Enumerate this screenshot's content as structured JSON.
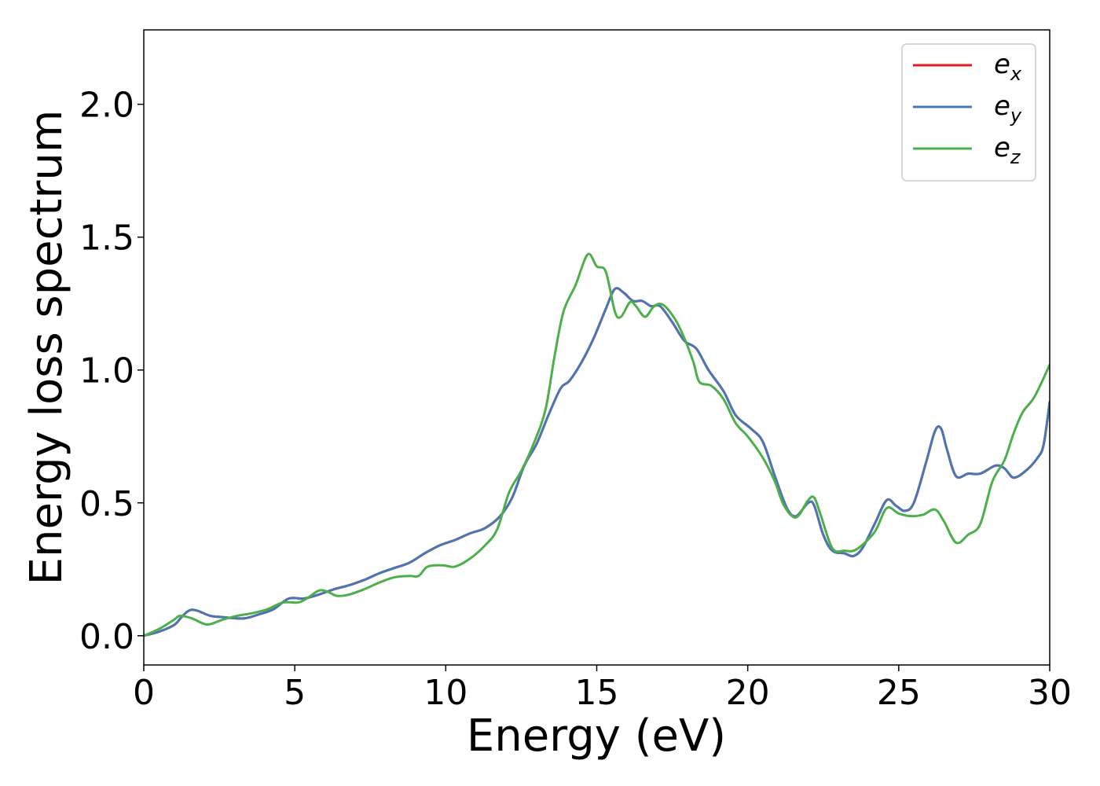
{
  "chart_data": {
    "type": "line",
    "title": "",
    "xlabel": "Energy (eV)",
    "ylabel": "Energy loss spectrum",
    "xlim": [
      0,
      30
    ],
    "ylim": [
      -0.11,
      2.28
    ],
    "xticks": [
      0,
      5,
      10,
      15,
      20,
      25,
      30
    ],
    "xtick_labels": [
      "0",
      "5",
      "10",
      "15",
      "20",
      "25",
      "30"
    ],
    "yticks": [
      0.0,
      0.5,
      1.0,
      1.5,
      2.0
    ],
    "ytick_labels": [
      "0.0",
      "0.5",
      "1.0",
      "1.5",
      "2.0"
    ],
    "grid": false,
    "legend_position": "top-right",
    "series": [
      {
        "name": "e_x",
        "legend_base": "e",
        "legend_sub": "x",
        "color": "#e41a1c",
        "points": [
          [
            0,
            0
          ],
          [
            0.5,
            0.015
          ],
          [
            1.0,
            0.04
          ],
          [
            1.25,
            0.07
          ],
          [
            1.5,
            0.095
          ],
          [
            1.75,
            0.095
          ],
          [
            2.2,
            0.075
          ],
          [
            2.6,
            0.07
          ],
          [
            3.3,
            0.065
          ],
          [
            3.8,
            0.08
          ],
          [
            4.3,
            0.1
          ],
          [
            4.8,
            0.14
          ],
          [
            5.3,
            0.14
          ],
          [
            5.8,
            0.155
          ],
          [
            6.3,
            0.175
          ],
          [
            6.8,
            0.19
          ],
          [
            7.3,
            0.21
          ],
          [
            7.8,
            0.235
          ],
          [
            8.3,
            0.255
          ],
          [
            8.8,
            0.275
          ],
          [
            9.3,
            0.31
          ],
          [
            9.8,
            0.34
          ],
          [
            10.3,
            0.36
          ],
          [
            10.8,
            0.385
          ],
          [
            11.3,
            0.405
          ],
          [
            11.8,
            0.45
          ],
          [
            12.2,
            0.52
          ],
          [
            12.6,
            0.64
          ],
          [
            13.0,
            0.72
          ],
          [
            13.4,
            0.83
          ],
          [
            13.8,
            0.93
          ],
          [
            14.1,
            0.96
          ],
          [
            14.5,
            1.03
          ],
          [
            14.9,
            1.12
          ],
          [
            15.3,
            1.23
          ],
          [
            15.6,
            1.305
          ],
          [
            15.9,
            1.29
          ],
          [
            16.2,
            1.26
          ],
          [
            16.5,
            1.26
          ],
          [
            16.8,
            1.24
          ],
          [
            17.1,
            1.24
          ],
          [
            17.5,
            1.18
          ],
          [
            17.9,
            1.11
          ],
          [
            18.3,
            1.08
          ],
          [
            18.7,
            1.0
          ],
          [
            19.2,
            0.92
          ],
          [
            19.6,
            0.83
          ],
          [
            20.1,
            0.78
          ],
          [
            20.5,
            0.73
          ],
          [
            20.9,
            0.6
          ],
          [
            21.3,
            0.48
          ],
          [
            21.6,
            0.45
          ],
          [
            22.0,
            0.5
          ],
          [
            22.2,
            0.49
          ],
          [
            22.5,
            0.38
          ],
          [
            22.8,
            0.32
          ],
          [
            23.2,
            0.31
          ],
          [
            23.5,
            0.3
          ],
          [
            23.8,
            0.33
          ],
          [
            24.2,
            0.42
          ],
          [
            24.6,
            0.51
          ],
          [
            24.9,
            0.49
          ],
          [
            25.2,
            0.47
          ],
          [
            25.5,
            0.5
          ],
          [
            25.9,
            0.65
          ],
          [
            26.2,
            0.77
          ],
          [
            26.4,
            0.78
          ],
          [
            26.6,
            0.7
          ],
          [
            26.9,
            0.6
          ],
          [
            27.3,
            0.61
          ],
          [
            27.7,
            0.61
          ],
          [
            28.2,
            0.64
          ],
          [
            28.5,
            0.63
          ],
          [
            28.8,
            0.595
          ],
          [
            29.2,
            0.62
          ],
          [
            29.6,
            0.67
          ],
          [
            29.8,
            0.72
          ],
          [
            30.0,
            0.88
          ]
        ]
      },
      {
        "name": "e_y",
        "legend_base": "e",
        "legend_sub": "y",
        "color": "#4a77b4",
        "points": [
          [
            0,
            0
          ],
          [
            0.5,
            0.015
          ],
          [
            1.0,
            0.04
          ],
          [
            1.25,
            0.07
          ],
          [
            1.5,
            0.095
          ],
          [
            1.75,
            0.095
          ],
          [
            2.2,
            0.075
          ],
          [
            2.6,
            0.07
          ],
          [
            3.3,
            0.065
          ],
          [
            3.8,
            0.08
          ],
          [
            4.3,
            0.1
          ],
          [
            4.8,
            0.14
          ],
          [
            5.3,
            0.14
          ],
          [
            5.8,
            0.155
          ],
          [
            6.3,
            0.175
          ],
          [
            6.8,
            0.19
          ],
          [
            7.3,
            0.21
          ],
          [
            7.8,
            0.235
          ],
          [
            8.3,
            0.255
          ],
          [
            8.8,
            0.275
          ],
          [
            9.3,
            0.31
          ],
          [
            9.8,
            0.34
          ],
          [
            10.3,
            0.36
          ],
          [
            10.8,
            0.385
          ],
          [
            11.3,
            0.405
          ],
          [
            11.8,
            0.45
          ],
          [
            12.2,
            0.52
          ],
          [
            12.6,
            0.64
          ],
          [
            13.0,
            0.72
          ],
          [
            13.4,
            0.83
          ],
          [
            13.8,
            0.93
          ],
          [
            14.1,
            0.96
          ],
          [
            14.5,
            1.03
          ],
          [
            14.9,
            1.12
          ],
          [
            15.3,
            1.23
          ],
          [
            15.6,
            1.305
          ],
          [
            15.9,
            1.29
          ],
          [
            16.2,
            1.26
          ],
          [
            16.5,
            1.26
          ],
          [
            16.8,
            1.24
          ],
          [
            17.1,
            1.24
          ],
          [
            17.5,
            1.18
          ],
          [
            17.9,
            1.11
          ],
          [
            18.3,
            1.08
          ],
          [
            18.7,
            1.0
          ],
          [
            19.2,
            0.92
          ],
          [
            19.6,
            0.83
          ],
          [
            20.1,
            0.78
          ],
          [
            20.5,
            0.73
          ],
          [
            20.9,
            0.6
          ],
          [
            21.3,
            0.48
          ],
          [
            21.6,
            0.45
          ],
          [
            22.0,
            0.5
          ],
          [
            22.2,
            0.49
          ],
          [
            22.5,
            0.38
          ],
          [
            22.8,
            0.32
          ],
          [
            23.2,
            0.31
          ],
          [
            23.5,
            0.3
          ],
          [
            23.8,
            0.33
          ],
          [
            24.2,
            0.42
          ],
          [
            24.6,
            0.51
          ],
          [
            24.9,
            0.49
          ],
          [
            25.2,
            0.47
          ],
          [
            25.5,
            0.5
          ],
          [
            25.9,
            0.65
          ],
          [
            26.2,
            0.77
          ],
          [
            26.4,
            0.78
          ],
          [
            26.6,
            0.7
          ],
          [
            26.9,
            0.6
          ],
          [
            27.3,
            0.61
          ],
          [
            27.7,
            0.61
          ],
          [
            28.2,
            0.64
          ],
          [
            28.5,
            0.63
          ],
          [
            28.8,
            0.595
          ],
          [
            29.2,
            0.62
          ],
          [
            29.6,
            0.67
          ],
          [
            29.8,
            0.72
          ],
          [
            30.0,
            0.88
          ]
        ]
      },
      {
        "name": "e_z",
        "legend_base": "e",
        "legend_sub": "z",
        "color": "#4daf4a",
        "points": [
          [
            0,
            0
          ],
          [
            0.5,
            0.025
          ],
          [
            1.0,
            0.06
          ],
          [
            1.2,
            0.075
          ],
          [
            1.6,
            0.065
          ],
          [
            2.1,
            0.042
          ],
          [
            2.6,
            0.06
          ],
          [
            3.1,
            0.075
          ],
          [
            3.6,
            0.085
          ],
          [
            4.1,
            0.1
          ],
          [
            4.6,
            0.125
          ],
          [
            5.1,
            0.125
          ],
          [
            5.4,
            0.14
          ],
          [
            5.8,
            0.17
          ],
          [
            6.1,
            0.165
          ],
          [
            6.4,
            0.15
          ],
          [
            6.8,
            0.155
          ],
          [
            7.3,
            0.175
          ],
          [
            7.8,
            0.2
          ],
          [
            8.3,
            0.22
          ],
          [
            8.8,
            0.225
          ],
          [
            9.1,
            0.225
          ],
          [
            9.4,
            0.26
          ],
          [
            9.9,
            0.265
          ],
          [
            10.3,
            0.26
          ],
          [
            10.8,
            0.29
          ],
          [
            11.3,
            0.34
          ],
          [
            11.7,
            0.4
          ],
          [
            12.1,
            0.54
          ],
          [
            12.5,
            0.62
          ],
          [
            12.9,
            0.72
          ],
          [
            13.3,
            0.85
          ],
          [
            13.6,
            1.05
          ],
          [
            13.9,
            1.22
          ],
          [
            14.3,
            1.32
          ],
          [
            14.7,
            1.435
          ],
          [
            15.0,
            1.39
          ],
          [
            15.3,
            1.37
          ],
          [
            15.6,
            1.22
          ],
          [
            15.8,
            1.2
          ],
          [
            16.1,
            1.255
          ],
          [
            16.3,
            1.24
          ],
          [
            16.6,
            1.2
          ],
          [
            16.9,
            1.24
          ],
          [
            17.2,
            1.245
          ],
          [
            17.6,
            1.19
          ],
          [
            17.9,
            1.12
          ],
          [
            18.2,
            1.03
          ],
          [
            18.4,
            0.955
          ],
          [
            18.8,
            0.94
          ],
          [
            19.2,
            0.89
          ],
          [
            19.6,
            0.8
          ],
          [
            20.0,
            0.75
          ],
          [
            20.5,
            0.67
          ],
          [
            20.9,
            0.58
          ],
          [
            21.2,
            0.49
          ],
          [
            21.6,
            0.445
          ],
          [
            22.0,
            0.51
          ],
          [
            22.2,
            0.52
          ],
          [
            22.4,
            0.46
          ],
          [
            22.8,
            0.33
          ],
          [
            23.2,
            0.32
          ],
          [
            23.6,
            0.325
          ],
          [
            24.2,
            0.39
          ],
          [
            24.6,
            0.48
          ],
          [
            25.0,
            0.46
          ],
          [
            25.4,
            0.45
          ],
          [
            25.8,
            0.455
          ],
          [
            26.2,
            0.475
          ],
          [
            26.5,
            0.43
          ],
          [
            26.9,
            0.35
          ],
          [
            27.3,
            0.38
          ],
          [
            27.7,
            0.42
          ],
          [
            28.1,
            0.58
          ],
          [
            28.5,
            0.66
          ],
          [
            28.8,
            0.76
          ],
          [
            29.1,
            0.84
          ],
          [
            29.5,
            0.9
          ],
          [
            30.0,
            1.02
          ]
        ]
      }
    ]
  }
}
